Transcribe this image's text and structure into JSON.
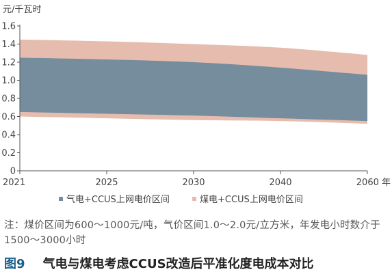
{
  "chart_data": {
    "type": "area",
    "ylabel": "元/千瓦时",
    "ylim": [
      0,
      1.6
    ],
    "yticks": [
      "0",
      "0.2",
      "0.4",
      "0.6",
      "0.8",
      "1.0",
      "1.2",
      "1.4",
      "1.6"
    ],
    "categories": [
      "2021",
      "2025",
      "2030",
      "2040",
      "2060 年"
    ],
    "grid": false,
    "legend_position": "bottom",
    "series": [
      {
        "name": "气电+CCUS上网电价区间",
        "color": "#758d9c",
        "lower": [
          0.65,
          0.63,
          0.61,
          0.58,
          0.55
        ],
        "upper": [
          1.25,
          1.23,
          1.2,
          1.14,
          1.06
        ]
      },
      {
        "name": "煤电+CCUS上网电价区间",
        "color": "#e6bcae",
        "lower": [
          0.6,
          0.58,
          0.56,
          0.55,
          0.52
        ],
        "upper": [
          1.45,
          1.43,
          1.4,
          1.36,
          1.28
        ]
      }
    ]
  },
  "note": "注：煤价区间为600～1000元/吨，气价区间1.0～2.0元/立方米，年发电小时数介于1500～3000小时",
  "figure": {
    "number": "图9",
    "title": "气电与煤电考虑CCUS改造后平准化度电成本对比"
  }
}
